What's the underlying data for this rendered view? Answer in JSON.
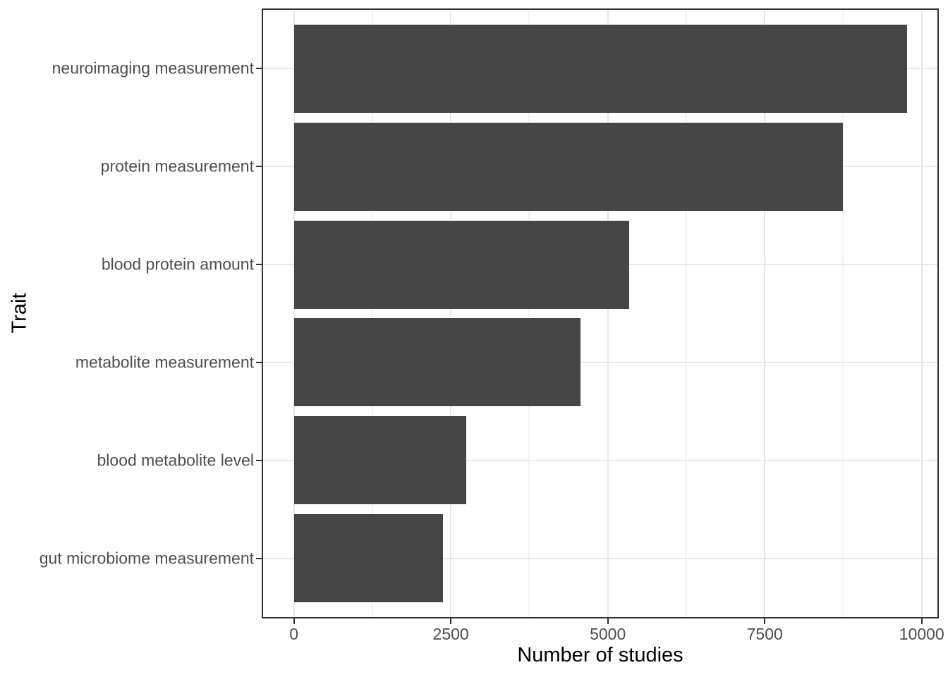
{
  "chart_data": {
    "type": "bar",
    "orientation": "horizontal",
    "title": "",
    "xlabel": "Number of studies",
    "ylabel": "Trait",
    "categories": [
      "neuroimaging measurement",
      "protein measurement",
      "blood protein amount",
      "metabolite measurement",
      "blood metabolite level",
      "gut microbiome measurement"
    ],
    "values": [
      9765,
      8750,
      5340,
      4565,
      2740,
      2375
    ],
    "x_tick_values": [
      0,
      2500,
      5000,
      7500,
      10000
    ],
    "x_tick_labels": [
      "0",
      "2500",
      "5000",
      "7500",
      "10000"
    ],
    "x_minor_tick_values": [
      1250,
      3750,
      6250,
      8750
    ],
    "xlim": [
      -490,
      10250
    ],
    "bar_width_fraction": 0.9,
    "grid": "on",
    "legend": "none",
    "colors": {
      "bar_fill": "#464646",
      "major_grid": "#e8e8e8",
      "minor_grid": "#f2f2f2",
      "panel_border": "#333333",
      "tick": "#333333",
      "axis_text": "#4d4d4d",
      "axis_title": "#000000",
      "background": "#ffffff"
    }
  }
}
